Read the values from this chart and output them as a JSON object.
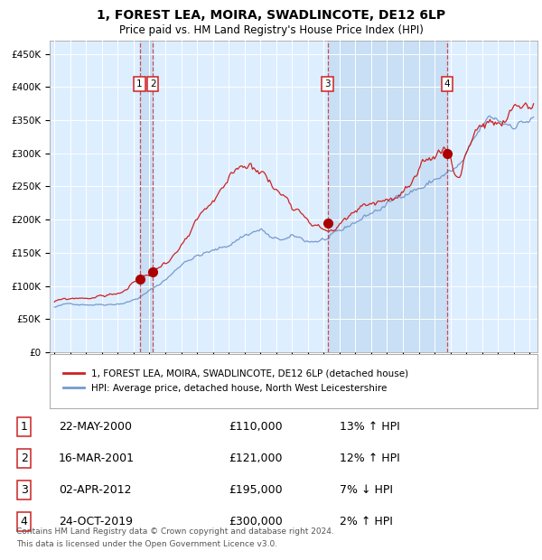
{
  "title": "1, FOREST LEA, MOIRA, SWADLINCOTE, DE12 6LP",
  "subtitle": "Price paid vs. HM Land Registry's House Price Index (HPI)",
  "title_fontsize": 10,
  "subtitle_fontsize": 8.5,
  "ylabel_ticks": [
    "£0",
    "£50K",
    "£100K",
    "£150K",
    "£200K",
    "£250K",
    "£300K",
    "£350K",
    "£400K",
    "£450K"
  ],
  "ytick_values": [
    0,
    50000,
    100000,
    150000,
    200000,
    250000,
    300000,
    350000,
    400000,
    450000
  ],
  "ylim": [
    0,
    470000
  ],
  "xlim_start": 1994.7,
  "xlim_end": 2025.5,
  "background_color": "#ffffff",
  "plot_bg_color": "#ddeeff",
  "grid_color": "#ffffff",
  "hpi_line_color": "#7799cc",
  "price_line_color": "#cc2222",
  "transaction_dot_color": "#aa0000",
  "vline_color": "#cc3333",
  "highlight_color": "#c8dff5",
  "legend_entry1": "1, FOREST LEA, MOIRA, SWADLINCOTE, DE12 6LP (detached house)",
  "legend_entry2": "HPI: Average price, detached house, North West Leicestershire",
  "transactions": [
    {
      "num": 1,
      "date": "22-MAY-2000",
      "price": 110000,
      "pct": "13%",
      "direction": "↑",
      "year": 2000.38
    },
    {
      "num": 2,
      "date": "16-MAR-2001",
      "price": 121000,
      "pct": "12%",
      "direction": "↑",
      "year": 2001.21
    },
    {
      "num": 3,
      "date": "02-APR-2012",
      "price": 195000,
      "pct": "7%",
      "direction": "↓",
      "year": 2012.25
    },
    {
      "num": 4,
      "date": "24-OCT-2019",
      "price": 300000,
      "pct": "2%",
      "direction": "↑",
      "year": 2019.81
    }
  ],
  "footer1": "Contains HM Land Registry data © Crown copyright and database right 2024.",
  "footer2": "This data is licensed under the Open Government Licence v3.0."
}
